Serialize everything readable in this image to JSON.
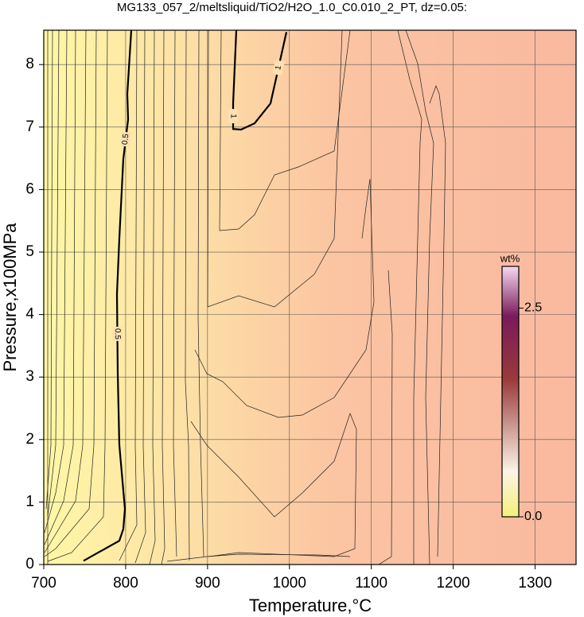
{
  "chart_data": {
    "type": "contour",
    "title": "MG133_057_2/meltsliquid/TiO2/H2O_1.0_C0.010_2_PT, dz=0.05:",
    "x_label": "Temperature,°C",
    "y_label": "Pressure,x100MPa",
    "xlim": [
      700,
      1350
    ],
    "ylim": [
      0,
      8.55
    ],
    "xticks": [
      700,
      800,
      900,
      1000,
      1100,
      1200,
      1300
    ],
    "yticks": [
      0,
      1,
      2,
      3,
      4,
      5,
      6,
      7,
      8
    ],
    "grid": true,
    "colorbar": {
      "label": "wt%",
      "lim": [
        0,
        3.0
      ],
      "ticks": [
        {
          "value": 0,
          "label": "0.0"
        },
        2.5
      ]
    },
    "contours": [
      {
        "level": 0.5,
        "color": "#000000",
        "x": [
          748.6,
          792.3,
          797.2,
          799.1,
          792.3,
          790.4,
          789.4,
          792.3,
          797.2,
          803,
          802,
          806.9
        ],
        "y": [
          0.06,
          0.38,
          0.57,
          0.89,
          1.91,
          3.05,
          4.33,
          5.22,
          6.49,
          7.12,
          7.53,
          8.55
        ]
      },
      {
        "level": 1,
        "color": "#000000",
        "x": [
          935.1,
          931.2,
          931.2,
          940.9,
          957.5,
          976.9,
          996.3
        ],
        "y": [
          8.55,
          7.38,
          6.97,
          6.96,
          7.06,
          7.38,
          8.52
        ]
      }
    ]
  }
}
